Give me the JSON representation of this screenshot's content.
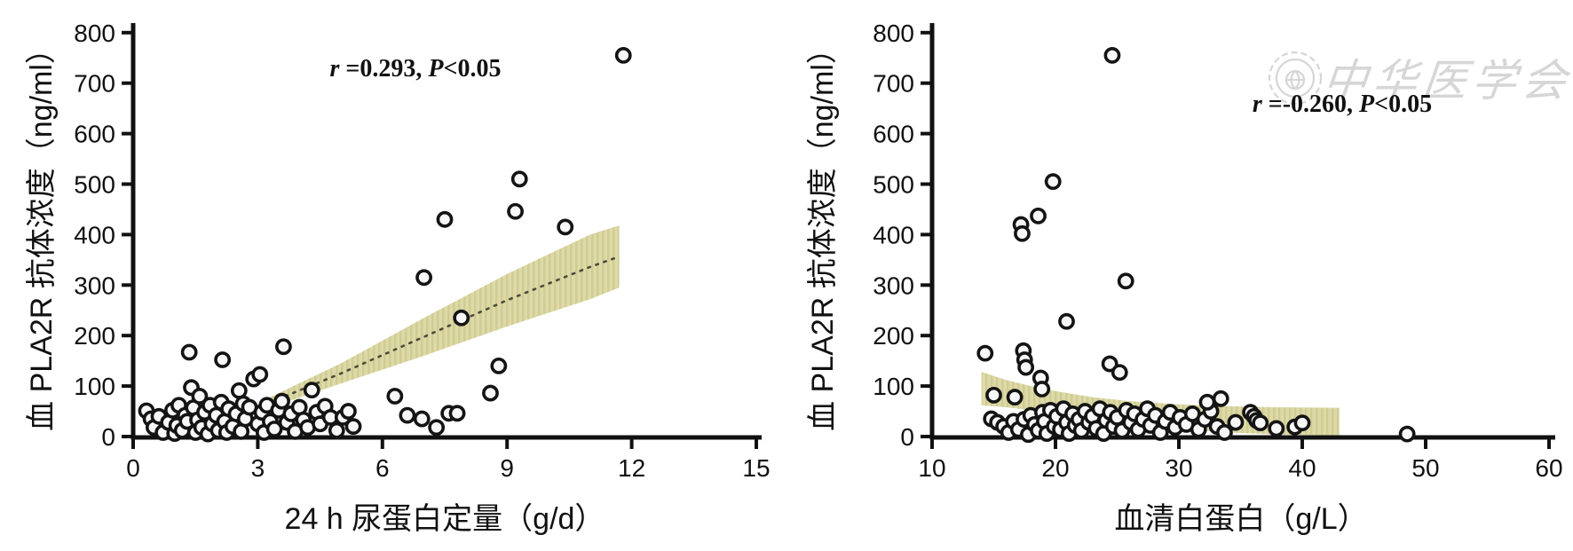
{
  "figure": {
    "background": "#ffffff",
    "watermark": {
      "seal_icon": "globe-seal-icon",
      "text": "中华医学会",
      "color": "#d6d6d6"
    }
  },
  "chart_data": [
    {
      "type": "scatter",
      "panel": "left",
      "annotation": "r =0.293, P<0.05",
      "annotation_parts": [
        {
          "text": "r ",
          "italic": true
        },
        {
          "text": "=0.293, ",
          "italic": false
        },
        {
          "text": "P",
          "italic": true
        },
        {
          "text": "<0.05",
          "italic": false
        }
      ],
      "correlation_r": 0.293,
      "p_value": "P<0.05",
      "xlabel": "24 h 尿蛋白定量（g/d）",
      "ylabel": "血 PLA2R 抗体浓度（ng/ml）",
      "xlim": [
        0,
        15
      ],
      "ylim": [
        0,
        800
      ],
      "xticks": [
        0,
        3,
        6,
        9,
        12,
        15
      ],
      "yticks": [
        0,
        100,
        200,
        300,
        400,
        500,
        600,
        700,
        800
      ],
      "grid": false,
      "marker": {
        "shape": "open-circle",
        "fill": "#f7f7f7",
        "stroke": "#141414"
      },
      "regression_band": {
        "color": "#dbd7a3",
        "stripe_color": "#c9c483",
        "centerline": true,
        "x": [
          3.1,
          5.0,
          7.0,
          9.0,
          11.0,
          11.7
        ],
        "top": [
          70,
          145,
          235,
          322,
          400,
          418
        ],
        "bottom": [
          52,
          105,
          160,
          218,
          272,
          295
        ]
      },
      "points": [
        [
          0.32,
          51
        ],
        [
          0.43,
          35
        ],
        [
          0.5,
          18
        ],
        [
          0.62,
          40
        ],
        [
          0.72,
          8
        ],
        [
          0.85,
          28
        ],
        [
          0.95,
          52
        ],
        [
          1.0,
          6
        ],
        [
          1.05,
          22
        ],
        [
          1.1,
          62
        ],
        [
          1.18,
          12
        ],
        [
          1.25,
          42
        ],
        [
          1.3,
          30
        ],
        [
          1.4,
          97
        ],
        [
          1.45,
          57
        ],
        [
          1.5,
          8
        ],
        [
          1.55,
          33
        ],
        [
          1.6,
          80
        ],
        [
          1.65,
          18
        ],
        [
          1.72,
          48
        ],
        [
          1.8,
          5
        ],
        [
          1.85,
          62
        ],
        [
          1.9,
          25
        ],
        [
          2.0,
          42
        ],
        [
          2.05,
          12
        ],
        [
          2.12,
          68
        ],
        [
          2.2,
          30
        ],
        [
          2.25,
          8
        ],
        [
          2.3,
          55
        ],
        [
          2.4,
          20
        ],
        [
          2.48,
          45
        ],
        [
          2.55,
          91
        ],
        [
          2.6,
          10
        ],
        [
          2.65,
          65
        ],
        [
          2.7,
          35
        ],
        [
          2.8,
          58
        ],
        [
          2.9,
          114
        ],
        [
          3.0,
          25
        ],
        [
          3.05,
          123
        ],
        [
          3.1,
          48
        ],
        [
          3.15,
          8
        ],
        [
          3.22,
          62
        ],
        [
          3.3,
          30
        ],
        [
          3.4,
          15
        ],
        [
          3.5,
          52
        ],
        [
          3.58,
          70
        ],
        [
          3.7,
          28
        ],
        [
          3.8,
          45
        ],
        [
          3.9,
          10
        ],
        [
          4.0,
          58
        ],
        [
          4.1,
          33
        ],
        [
          4.2,
          18
        ],
        [
          4.3,
          92
        ],
        [
          4.42,
          48
        ],
        [
          4.5,
          25
        ],
        [
          4.62,
          60
        ],
        [
          4.75,
          38
        ],
        [
          4.9,
          12
        ],
        [
          5.05,
          38
        ],
        [
          5.18,
          50
        ],
        [
          5.3,
          20
        ],
        [
          1.35,
          167
        ],
        [
          2.15,
          152
        ],
        [
          3.62,
          178
        ],
        [
          6.3,
          80
        ],
        [
          6.6,
          42
        ],
        [
          6.95,
          35
        ],
        [
          7.3,
          18
        ],
        [
          7.6,
          46
        ],
        [
          7.8,
          46
        ],
        [
          7.0,
          315
        ],
        [
          7.5,
          430
        ],
        [
          7.9,
          235
        ],
        [
          8.6,
          86
        ],
        [
          8.8,
          140
        ],
        [
          9.2,
          446
        ],
        [
          9.3,
          510
        ],
        [
          10.4,
          415
        ],
        [
          11.8,
          755
        ]
      ]
    },
    {
      "type": "scatter",
      "panel": "right",
      "annotation": "r =-0.260, P<0.05",
      "annotation_parts": [
        {
          "text": "r ",
          "italic": true
        },
        {
          "text": "=-0.260, ",
          "italic": false
        },
        {
          "text": "P",
          "italic": true
        },
        {
          "text": "<0.05",
          "italic": false
        }
      ],
      "correlation_r": -0.26,
      "p_value": "P<0.05",
      "xlabel": "血清白蛋白（g/L）",
      "ylabel": "血 PLA2R 抗体浓度（ng/ml）",
      "xlim": [
        10,
        60
      ],
      "ylim": [
        0,
        800
      ],
      "xticks": [
        10,
        20,
        30,
        40,
        50,
        60
      ],
      "yticks": [
        0,
        100,
        200,
        300,
        400,
        500,
        600,
        700,
        800
      ],
      "grid": false,
      "marker": {
        "shape": "open-circle",
        "fill": "#f7f7f7",
        "stroke": "#141414"
      },
      "regression_band": {
        "color": "#dbd7a3",
        "stripe_color": "#c9c483",
        "centerline": false,
        "x": [
          14,
          16,
          18,
          20,
          23,
          26,
          30,
          34,
          38,
          43
        ],
        "top": [
          128,
          112,
          100,
          90,
          78,
          70,
          64,
          60,
          58,
          57
        ],
        "bottom": [
          62,
          58,
          52,
          45,
          35,
          25,
          15,
          8,
          4,
          2
        ]
      },
      "points": [
        [
          14.8,
          35
        ],
        [
          15.3,
          28
        ],
        [
          15.8,
          20
        ],
        [
          16.2,
          8
        ],
        [
          16.6,
          30
        ],
        [
          17.0,
          14
        ],
        [
          17.45,
          34
        ],
        [
          17.8,
          4
        ],
        [
          18.0,
          42
        ],
        [
          18.3,
          24
        ],
        [
          18.6,
          12
        ],
        [
          18.95,
          48
        ],
        [
          19.1,
          30
        ],
        [
          19.3,
          6
        ],
        [
          19.6,
          52
        ],
        [
          19.9,
          20
        ],
        [
          20.1,
          40
        ],
        [
          20.4,
          14
        ],
        [
          20.65,
          55
        ],
        [
          20.9,
          28
        ],
        [
          21.1,
          6
        ],
        [
          21.4,
          45
        ],
        [
          21.6,
          22
        ],
        [
          21.9,
          34
        ],
        [
          22.1,
          12
        ],
        [
          22.4,
          50
        ],
        [
          22.7,
          28
        ],
        [
          23.0,
          40
        ],
        [
          23.3,
          16
        ],
        [
          23.6,
          55
        ],
        [
          23.9,
          6
        ],
        [
          24.1,
          32
        ],
        [
          24.45,
          48
        ],
        [
          24.7,
          20
        ],
        [
          25.0,
          38
        ],
        [
          25.4,
          12
        ],
        [
          25.75,
          52
        ],
        [
          26.1,
          28
        ],
        [
          26.4,
          45
        ],
        [
          26.7,
          14
        ],
        [
          27.1,
          34
        ],
        [
          27.45,
          55
        ],
        [
          27.7,
          22
        ],
        [
          28.1,
          42
        ],
        [
          28.5,
          8
        ],
        [
          28.9,
          30
        ],
        [
          29.3,
          48
        ],
        [
          29.7,
          18
        ],
        [
          30.1,
          38
        ],
        [
          30.6,
          24
        ],
        [
          31.1,
          45
        ],
        [
          31.6,
          14
        ],
        [
          32.1,
          34
        ],
        [
          32.6,
          50
        ],
        [
          33.1,
          20
        ],
        [
          33.7,
          8
        ],
        [
          34.6,
          28
        ],
        [
          35.8,
          48
        ],
        [
          36.1,
          40
        ],
        [
          36.3,
          32
        ],
        [
          36.6,
          27
        ],
        [
          37.9,
          16
        ],
        [
          39.4,
          19
        ],
        [
          40.0,
          27
        ],
        [
          48.5,
          5
        ],
        [
          24.6,
          755
        ],
        [
          19.8,
          505
        ],
        [
          18.6,
          437
        ],
        [
          17.2,
          420
        ],
        [
          17.3,
          402
        ],
        [
          25.7,
          308
        ],
        [
          20.9,
          228
        ],
        [
          14.3,
          165
        ],
        [
          17.4,
          170
        ],
        [
          17.5,
          152
        ],
        [
          17.6,
          137
        ],
        [
          24.4,
          144
        ],
        [
          25.2,
          127
        ],
        [
          18.8,
          116
        ],
        [
          18.9,
          94
        ],
        [
          15.0,
          82
        ],
        [
          16.7,
          78
        ],
        [
          32.3,
          68
        ],
        [
          33.4,
          75
        ]
      ]
    }
  ]
}
